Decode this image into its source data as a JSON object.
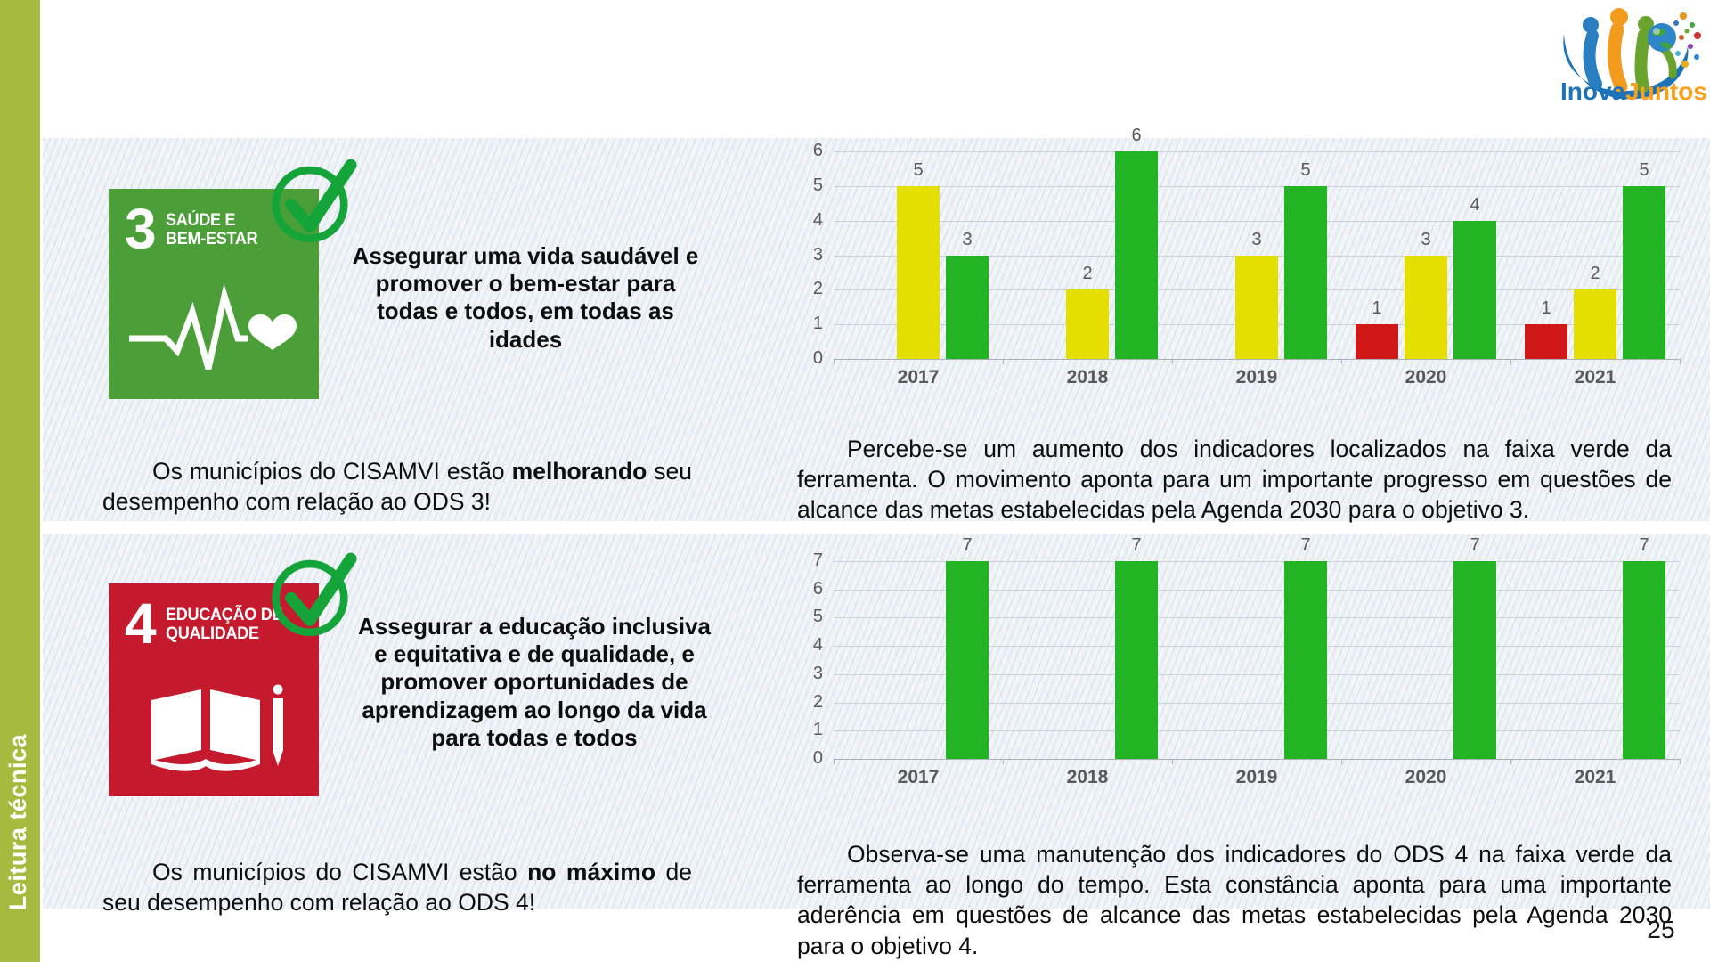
{
  "sidebar": {
    "label": "Leitura técnica",
    "color": "#a7ba40"
  },
  "logo": {
    "word1": "Inova",
    "word2": "Juntos",
    "word1_color": "#1c73ba",
    "word2_color": "#f6a01c"
  },
  "page_number": "25",
  "sections": [
    {
      "id": "ods3",
      "badge": {
        "number": "3",
        "title_line1": "SAÚDE E",
        "title_line2": "BEM-ESTAR",
        "color": "#4c9f38",
        "icon": "heartbeat-icon"
      },
      "goal": "Assegurar uma vida saudável e promover o bem-estar para todas e todos, em todas as idades",
      "status": {
        "prefix": "Os municípios do CISAMVI estão ",
        "bold": "melhorando",
        "suffix": " seu desempenho com relação ao ODS 3!"
      },
      "analysis": "Percebe-se um aumento dos indicadores localizados na faixa verde da ferramenta. O movimento aponta para um importante progresso em questões de alcance das metas estabelecidas pela Agenda 2030 para o objetivo 3."
    },
    {
      "id": "ods4",
      "badge": {
        "number": "4",
        "title_line1": "EDUCAÇÃO DE",
        "title_line2": "QUALIDADE",
        "color": "#c5192d",
        "icon": "open-book-icon"
      },
      "goal": "Assegurar a educação inclusiva e equitativa e de qualidade, e promover oportunidades de aprendizagem ao longo da vida para todas e todos",
      "status": {
        "prefix": "Os municípios do CISAMVI estão ",
        "bold": "no máximo",
        "suffix": " de seu desempenho com relação ao ODS 4!"
      },
      "analysis": "Observa-se uma manutenção dos indicadores do ODS 4 na faixa verde da ferramenta ao longo do tempo. Esta constância aponta para uma importante aderência em questões de alcance das metas estabelecidas pela Agenda 2030 para o objetivo 4."
    }
  ],
  "chart_data": [
    {
      "type": "bar",
      "title": "",
      "categories": [
        "2017",
        "2018",
        "2019",
        "2020",
        "2021"
      ],
      "series": [
        {
          "name": "faixa vermelha",
          "color": "#d11818",
          "values": [
            0,
            0,
            0,
            1,
            1
          ]
        },
        {
          "name": "faixa amarela",
          "color": "#e5df00",
          "values": [
            5,
            2,
            3,
            3,
            2
          ]
        },
        {
          "name": "faixa verde",
          "color": "#22b422",
          "values": [
            3,
            6,
            5,
            4,
            5
          ]
        }
      ],
      "xlabel": "",
      "ylabel": "",
      "ylim": [
        0,
        6
      ],
      "yticks": [
        0,
        1,
        2,
        3,
        4,
        5,
        6
      ],
      "grid": true,
      "legend": "none",
      "data_labels": true
    },
    {
      "type": "bar",
      "title": "",
      "categories": [
        "2017",
        "2018",
        "2019",
        "2020",
        "2021"
      ],
      "series": [
        {
          "name": "faixa vermelha",
          "color": "#d11818",
          "values": [
            0,
            0,
            0,
            0,
            0
          ]
        },
        {
          "name": "faixa amarela",
          "color": "#e5df00",
          "values": [
            0,
            0,
            0,
            0,
            0
          ]
        },
        {
          "name": "faixa verde",
          "color": "#22b422",
          "values": [
            7,
            7,
            7,
            7,
            7
          ]
        }
      ],
      "xlabel": "",
      "ylabel": "",
      "ylim": [
        0,
        7
      ],
      "yticks": [
        0,
        1,
        2,
        3,
        4,
        5,
        6,
        7
      ],
      "grid": true,
      "legend": "none",
      "data_labels": true
    }
  ]
}
